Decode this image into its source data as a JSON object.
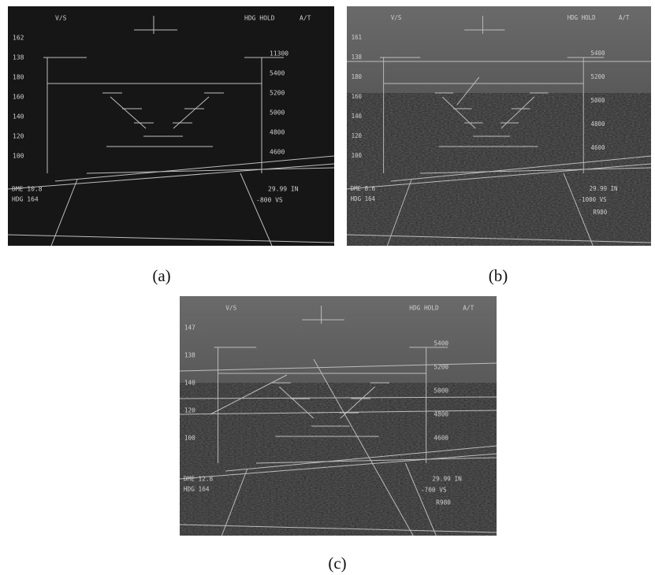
{
  "panels": [
    {
      "caption": "(a)",
      "hud": {
        "mode": "V/S",
        "hold": "HDG HOLD",
        "at": "A/T",
        "speeds": [
          "162",
          "138",
          "180",
          "160",
          "140",
          "120",
          "100"
        ],
        "altitudes": [
          "11300",
          "5400",
          "5200",
          "5000",
          "4800",
          "4600"
        ],
        "dme": "DME 10.8",
        "hdg": "HDG 164",
        "baro": "29.99 IN",
        "vs": "-800 VS"
      }
    },
    {
      "caption": "(b)",
      "hud": {
        "mode": "V/S",
        "hold": "HDG HOLD",
        "at": "A/T",
        "speeds": [
          "161",
          "138",
          "180",
          "160",
          "140",
          "120",
          "100"
        ],
        "altitudes": [
          "5400",
          "5200",
          "5000",
          "4800",
          "4600"
        ],
        "dme": "DME 8.6",
        "hdg": "HDG 164",
        "baro": "29.99 IN",
        "vs": "-1000 VS",
        "radio": "R980"
      }
    },
    {
      "caption": "(c)",
      "hud": {
        "mode": "V/S",
        "hold": "HDG HOLD",
        "at": "A/T",
        "speeds": [
          "147",
          "138",
          "140",
          "120",
          "100"
        ],
        "altitudes": [
          "5400",
          "5200",
          "5000",
          "4800",
          "4600"
        ],
        "dme": "DME 12.8",
        "hdg": "HDG 164",
        "baro": "29.99 IN",
        "vs": "-700 VS",
        "radio": "R980"
      }
    }
  ]
}
